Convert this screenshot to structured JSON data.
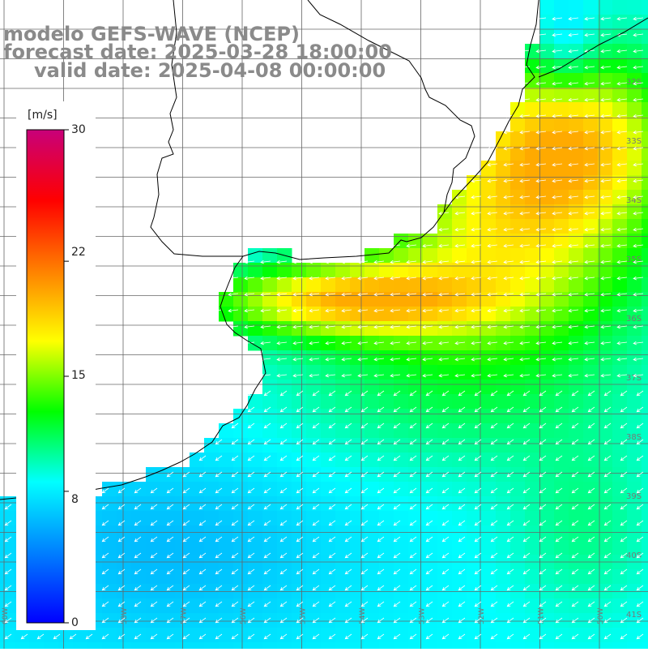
{
  "header": {
    "model_line": "modelo GEFS-WAVE (NCEP)",
    "forecast_line": "forecast date: 2025-03-28 18:00:00",
    "valid_line": "valid date: 2025-04-08 00:00:00"
  },
  "colorbar": {
    "unit": "[m/s]",
    "ticks": [
      "30",
      "22",
      "15",
      "8",
      "0"
    ],
    "tick_values": [
      30,
      22,
      15,
      8,
      0
    ],
    "range": [
      0,
      30
    ],
    "colors": [
      "#0000ff",
      "#0080ff",
      "#00ffff",
      "#00ff00",
      "#ffff00",
      "#ff8000",
      "#ff0000",
      "#c8007a"
    ]
  },
  "grid": {
    "lat_labels": [
      "32S",
      "33S",
      "34S",
      "35S",
      "36S",
      "37S",
      "38S",
      "39S",
      "40S",
      "41S"
    ],
    "lon_labels": [
      "60W",
      "59W",
      "58W",
      "57W",
      "56W",
      "55W",
      "54W",
      "53W",
      "52W",
      "51W",
      "50W"
    ]
  },
  "map_data": {
    "field": "wind speed",
    "units": "m/s",
    "arrow_direction": "from east/northeast (blowing toward west/southwest)",
    "max_region": "northeast offshore of Uruguay",
    "approx_max": 19
  }
}
